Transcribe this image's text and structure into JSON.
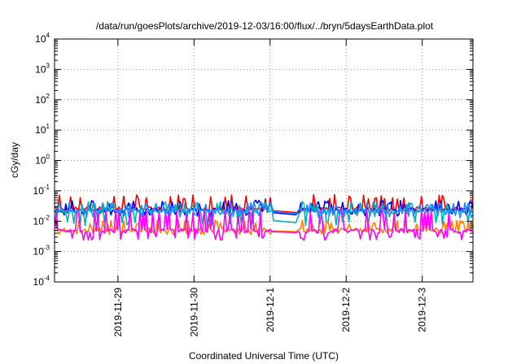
{
  "chart_data": {
    "type": "line",
    "title": "/data/run/goesPlots/archive/2019-12-03/16:00/flux/../bryn/5daysEarthData.plot",
    "xlabel": "Coordinated Universal Time (UTC)",
    "ylabel": "cGy/day",
    "yscale": "log",
    "ylim": [
      0.0001,
      10000
    ],
    "xlim": [
      "2019-11-28T04:00",
      "2019-12-03T16:00"
    ],
    "y_ticks": [
      {
        "base": "10",
        "exp": "-4"
      },
      {
        "base": "10",
        "exp": "-3"
      },
      {
        "base": "10",
        "exp": "-2"
      },
      {
        "base": "10",
        "exp": "-1"
      },
      {
        "base": "10",
        "exp": "0"
      },
      {
        "base": "10",
        "exp": "1"
      },
      {
        "base": "10",
        "exp": "2"
      },
      {
        "base": "10",
        "exp": "3"
      },
      {
        "base": "10",
        "exp": "4"
      }
    ],
    "x_ticks": [
      "2019-11-29",
      "2019-11-30",
      "2019-12-1",
      "2019-12-2",
      "2019-12-3"
    ],
    "x_tick_times": [
      "2019-11-29T00:00",
      "2019-11-30T00:00",
      "2019-12-01T00:00",
      "2019-12-02T00:00",
      "2019-12-03T00:00"
    ],
    "grid": true,
    "data_gap": [
      "2019-12-01T01:00",
      "2019-12-01T09:00"
    ],
    "series": [
      {
        "color": "#ff0000",
        "base": 0.026,
        "low": 0.022,
        "high": 0.075,
        "gap_level": 0.022,
        "gap_end": 0.019
      },
      {
        "color": "#0000ff",
        "base": 0.024,
        "low": 0.016,
        "high": 0.05,
        "gap_level": 0.019,
        "gap_end": 0.016
      },
      {
        "color": "#00b3b3",
        "base": 0.021,
        "low": 0.008,
        "high": 0.045,
        "gap_level": 0.0105,
        "gap_end": 0.0088
      },
      {
        "color": "#ff8000",
        "base": 0.0052,
        "low": 0.004,
        "high": 0.011,
        "gap_level": 0.0048,
        "gap_end": 0.0045
      },
      {
        "color": "#ff00ff",
        "base": 0.0048,
        "low": 0.0026,
        "high": 0.025,
        "gap_level": 0.0045,
        "gap_end": 0.0042
      },
      {
        "color": "#1e90ff",
        "base": 0.023,
        "low": 0.014,
        "high": 0.042,
        "gap_level": 0.0205,
        "gap_end": 0.0175
      }
    ]
  }
}
